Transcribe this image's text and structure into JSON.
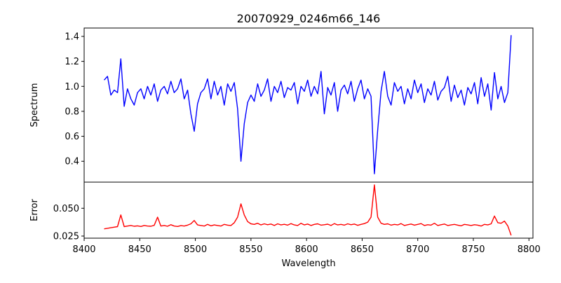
{
  "chart_data": {
    "type": "line",
    "title": "20070929_0246m66_146",
    "xlabel": "Wavelength",
    "xlim": [
      8400,
      8803.6
    ],
    "xticks": [
      "8400",
      "8450",
      "8500",
      "8550",
      "8600",
      "8650",
      "8700",
      "8750",
      "8800"
    ],
    "wavelength_start": 8418,
    "wavelength_step": 3,
    "panels": [
      {
        "ylabel": "Spectrum",
        "ylim": [
          0.233,
          1.467
        ],
        "yticks": [
          "0.4",
          "0.6",
          "0.8",
          "1.0",
          "1.2",
          "1.4"
        ],
        "color": "#0000ff",
        "values": [
          1.05,
          1.08,
          0.93,
          0.97,
          0.95,
          1.22,
          0.84,
          0.98,
          0.9,
          0.85,
          0.95,
          0.98,
          0.9,
          1.0,
          0.93,
          1.02,
          0.88,
          0.97,
          1.0,
          0.94,
          1.04,
          0.95,
          0.98,
          1.06,
          0.9,
          0.97,
          0.78,
          0.64,
          0.86,
          0.95,
          0.98,
          1.06,
          0.9,
          1.04,
          0.93,
          1.0,
          0.85,
          1.02,
          0.96,
          1.03,
          0.82,
          0.4,
          0.7,
          0.87,
          0.93,
          0.88,
          1.02,
          0.92,
          0.97,
          1.06,
          0.88,
          1.0,
          0.95,
          1.04,
          0.91,
          0.99,
          0.97,
          1.03,
          0.86,
          1.0,
          0.96,
          1.05,
          0.92,
          1.0,
          0.94,
          1.12,
          0.78,
          0.99,
          0.93,
          1.03,
          0.8,
          0.97,
          1.01,
          0.94,
          1.04,
          0.88,
          0.98,
          1.05,
          0.9,
          0.98,
          0.92,
          0.3,
          0.65,
          0.96,
          1.12,
          0.92,
          0.85,
          1.03,
          0.96,
          1.0,
          0.86,
          0.98,
          0.9,
          1.05,
          0.95,
          1.02,
          0.87,
          0.98,
          0.93,
          1.04,
          0.89,
          0.96,
          0.99,
          1.08,
          0.88,
          1.01,
          0.91,
          0.97,
          0.85,
          0.99,
          0.94,
          1.03,
          0.86,
          1.07,
          0.92,
          1.02,
          0.81,
          1.11,
          0.9,
          1.0,
          0.87,
          0.95,
          1.41
        ]
      },
      {
        "ylabel": "Error",
        "ylim": [
          0.0231,
          0.0735
        ],
        "yticks": [
          "0.025",
          "0.050"
        ],
        "color": "#ff0000",
        "values": [
          0.0315,
          0.032,
          0.0325,
          0.033,
          0.0335,
          0.044,
          0.0335,
          0.034,
          0.0345,
          0.0338,
          0.0342,
          0.0336,
          0.0345,
          0.034,
          0.0338,
          0.0346,
          0.042,
          0.034,
          0.0345,
          0.0338,
          0.0352,
          0.034,
          0.0336,
          0.0344,
          0.034,
          0.0348,
          0.036,
          0.039,
          0.035,
          0.0345,
          0.034,
          0.0355,
          0.0342,
          0.035,
          0.0345,
          0.034,
          0.0355,
          0.0348,
          0.0345,
          0.037,
          0.042,
          0.054,
          0.044,
          0.038,
          0.036,
          0.0355,
          0.0365,
          0.035,
          0.036,
          0.0352,
          0.0358,
          0.0345,
          0.036,
          0.035,
          0.0356,
          0.0348,
          0.0362,
          0.035,
          0.0345,
          0.0365,
          0.035,
          0.0358,
          0.0345,
          0.0355,
          0.036,
          0.0348,
          0.0352,
          0.0357,
          0.0345,
          0.0362,
          0.035,
          0.0355,
          0.0348,
          0.036,
          0.0352,
          0.0358,
          0.0346,
          0.0355,
          0.0362,
          0.0375,
          0.042,
          0.071,
          0.042,
          0.0365,
          0.0355,
          0.036,
          0.0348,
          0.0355,
          0.035,
          0.0362,
          0.0345,
          0.0352,
          0.0358,
          0.0348,
          0.0355,
          0.0362,
          0.0345,
          0.0352,
          0.0348,
          0.0365,
          0.0345,
          0.0352,
          0.0358,
          0.0345,
          0.035,
          0.0355,
          0.0348,
          0.0342,
          0.0355,
          0.035,
          0.0345,
          0.0352,
          0.0348,
          0.034,
          0.0355,
          0.035,
          0.036,
          0.043,
          0.037,
          0.0365,
          0.0385,
          0.034,
          0.0256
        ]
      }
    ]
  }
}
